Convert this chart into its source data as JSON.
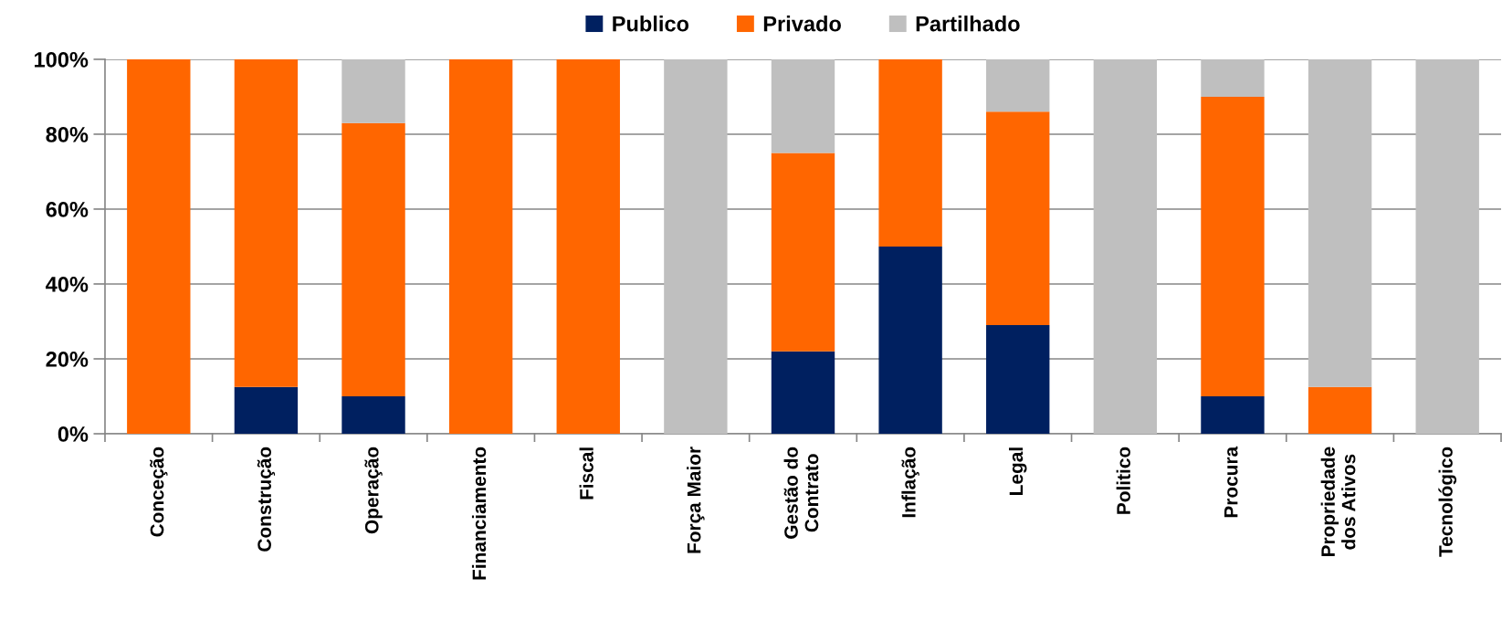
{
  "chart_data": {
    "type": "bar",
    "stacked": true,
    "categories": [
      "Conceção",
      "Construção",
      "Operação",
      "Financiamento",
      "Fiscal",
      "Força Maior",
      "Gestão do\nContrato",
      "Inflação",
      "Legal",
      "Politico",
      "Procura",
      "Propriedade\ndos Ativos",
      "Tecnológico"
    ],
    "series": [
      {
        "name": "Publico",
        "color": "#002060",
        "values": [
          0,
          12.5,
          10,
          0,
          0,
          0,
          22,
          50,
          29,
          0,
          10,
          0,
          0
        ]
      },
      {
        "name": "Privado",
        "color": "#ff6600",
        "values": [
          100,
          87.5,
          73,
          100,
          100,
          0,
          53,
          50,
          57,
          0,
          80,
          12.5,
          0
        ]
      },
      {
        "name": "Partilhado",
        "color": "#bfbfbf",
        "values": [
          0,
          0,
          17,
          0,
          0,
          100,
          25,
          0,
          14,
          100,
          10,
          87.5,
          100
        ]
      }
    ],
    "ylim": [
      0,
      100
    ],
    "yticks": [
      {
        "value": 0,
        "label": "0%"
      },
      {
        "value": 20,
        "label": "20%"
      },
      {
        "value": 40,
        "label": "40%"
      },
      {
        "value": 60,
        "label": "60%"
      },
      {
        "value": 80,
        "label": "80%"
      },
      {
        "value": 100,
        "label": "100%"
      }
    ],
    "grid": "y",
    "legend": "top"
  }
}
